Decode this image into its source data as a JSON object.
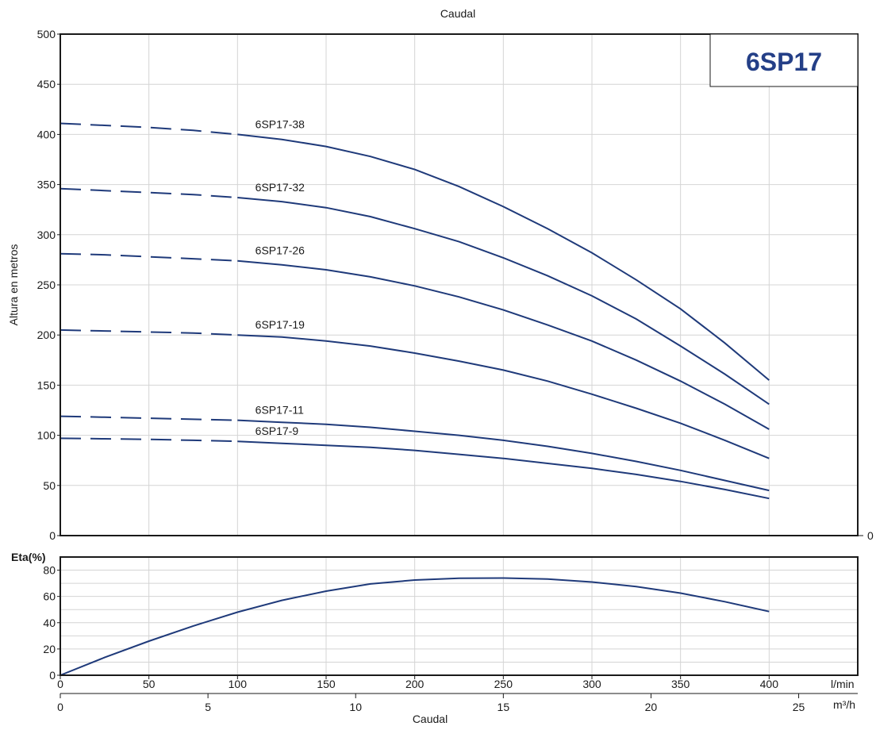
{
  "chart_data": [
    {
      "type": "line",
      "top_title": "Caudal",
      "model_box": "6SP17",
      "ylabel": "Altura en metros",
      "ylim": [
        0,
        500
      ],
      "yticks": [
        0,
        50,
        100,
        150,
        200,
        250,
        300,
        350,
        400,
        450,
        500
      ],
      "xlim": [
        0,
        450
      ],
      "right_axis_label": "0",
      "grid": true,
      "dashed_until_x": 100,
      "series": [
        {
          "name": "6SP17-38",
          "x": [
            0,
            25,
            50,
            75,
            100,
            125,
            150,
            175,
            200,
            225,
            250,
            275,
            300,
            325,
            350,
            375,
            400
          ],
          "y": [
            411,
            409,
            407,
            404,
            400,
            395,
            388,
            378,
            365,
            348,
            328,
            306,
            282,
            255,
            226,
            192,
            155
          ]
        },
        {
          "name": "6SP17-32",
          "x": [
            0,
            25,
            50,
            75,
            100,
            125,
            150,
            175,
            200,
            225,
            250,
            275,
            300,
            325,
            350,
            375,
            400
          ],
          "y": [
            346,
            344,
            342,
            340,
            337,
            333,
            327,
            318,
            306,
            293,
            277,
            259,
            239,
            216,
            189,
            161,
            131
          ]
        },
        {
          "name": "6SP17-26",
          "x": [
            0,
            25,
            50,
            75,
            100,
            125,
            150,
            175,
            200,
            225,
            250,
            275,
            300,
            325,
            350,
            375,
            400
          ],
          "y": [
            281,
            280,
            278,
            276,
            274,
            270,
            265,
            258,
            249,
            238,
            225,
            210,
            194,
            175,
            154,
            131,
            106
          ]
        },
        {
          "name": "6SP17-19",
          "x": [
            0,
            25,
            50,
            75,
            100,
            125,
            150,
            175,
            200,
            225,
            250,
            275,
            300,
            325,
            350,
            375,
            400
          ],
          "y": [
            205,
            204,
            203,
            202,
            200,
            198,
            194,
            189,
            182,
            174,
            165,
            154,
            141,
            127,
            112,
            95,
            77
          ]
        },
        {
          "name": "6SP17-11",
          "x": [
            0,
            25,
            50,
            75,
            100,
            125,
            150,
            175,
            200,
            225,
            250,
            275,
            300,
            325,
            350,
            375,
            400
          ],
          "y": [
            119,
            118,
            117,
            116,
            115,
            113,
            111,
            108,
            104,
            100,
            95,
            89,
            82,
            74,
            65,
            55,
            45
          ]
        },
        {
          "name": "6SP17-9",
          "x": [
            0,
            25,
            50,
            75,
            100,
            125,
            150,
            175,
            200,
            225,
            250,
            275,
            300,
            325,
            350,
            375,
            400
          ],
          "y": [
            97,
            96.5,
            96,
            95,
            94,
            92,
            90,
            88,
            85,
            81,
            77,
            72,
            67,
            61,
            54,
            46,
            37
          ]
        }
      ]
    },
    {
      "type": "line",
      "ylabel": "Eta(%)",
      "ylim": [
        0,
        90
      ],
      "yticks": [
        0,
        20,
        40,
        60,
        80
      ],
      "xlim": [
        0,
        450
      ],
      "xticks": [
        0,
        50,
        100,
        150,
        200,
        250,
        300,
        350,
        400
      ],
      "x_unit_primary": "l/min",
      "x2_unit": "m³/h",
      "x2ticks": [
        0,
        5,
        10,
        15,
        20,
        25
      ],
      "x2_per_x": 0.06,
      "xlabel": "Caudal",
      "grid": true,
      "series": [
        {
          "name": "",
          "x": [
            0,
            25,
            50,
            75,
            100,
            125,
            150,
            175,
            200,
            225,
            250,
            275,
            300,
            325,
            350,
            375,
            400
          ],
          "y": [
            0,
            13.5,
            26,
            37.5,
            48,
            57,
            64,
            69.5,
            72.5,
            73.8,
            74,
            73.2,
            71,
            67.5,
            62.5,
            56,
            48.5
          ]
        }
      ]
    }
  ],
  "colors": {
    "curve": "#1f3a7a",
    "title_box": "#243f87",
    "frame": "#1a1a1a",
    "grid": "#d4d4d4"
  }
}
